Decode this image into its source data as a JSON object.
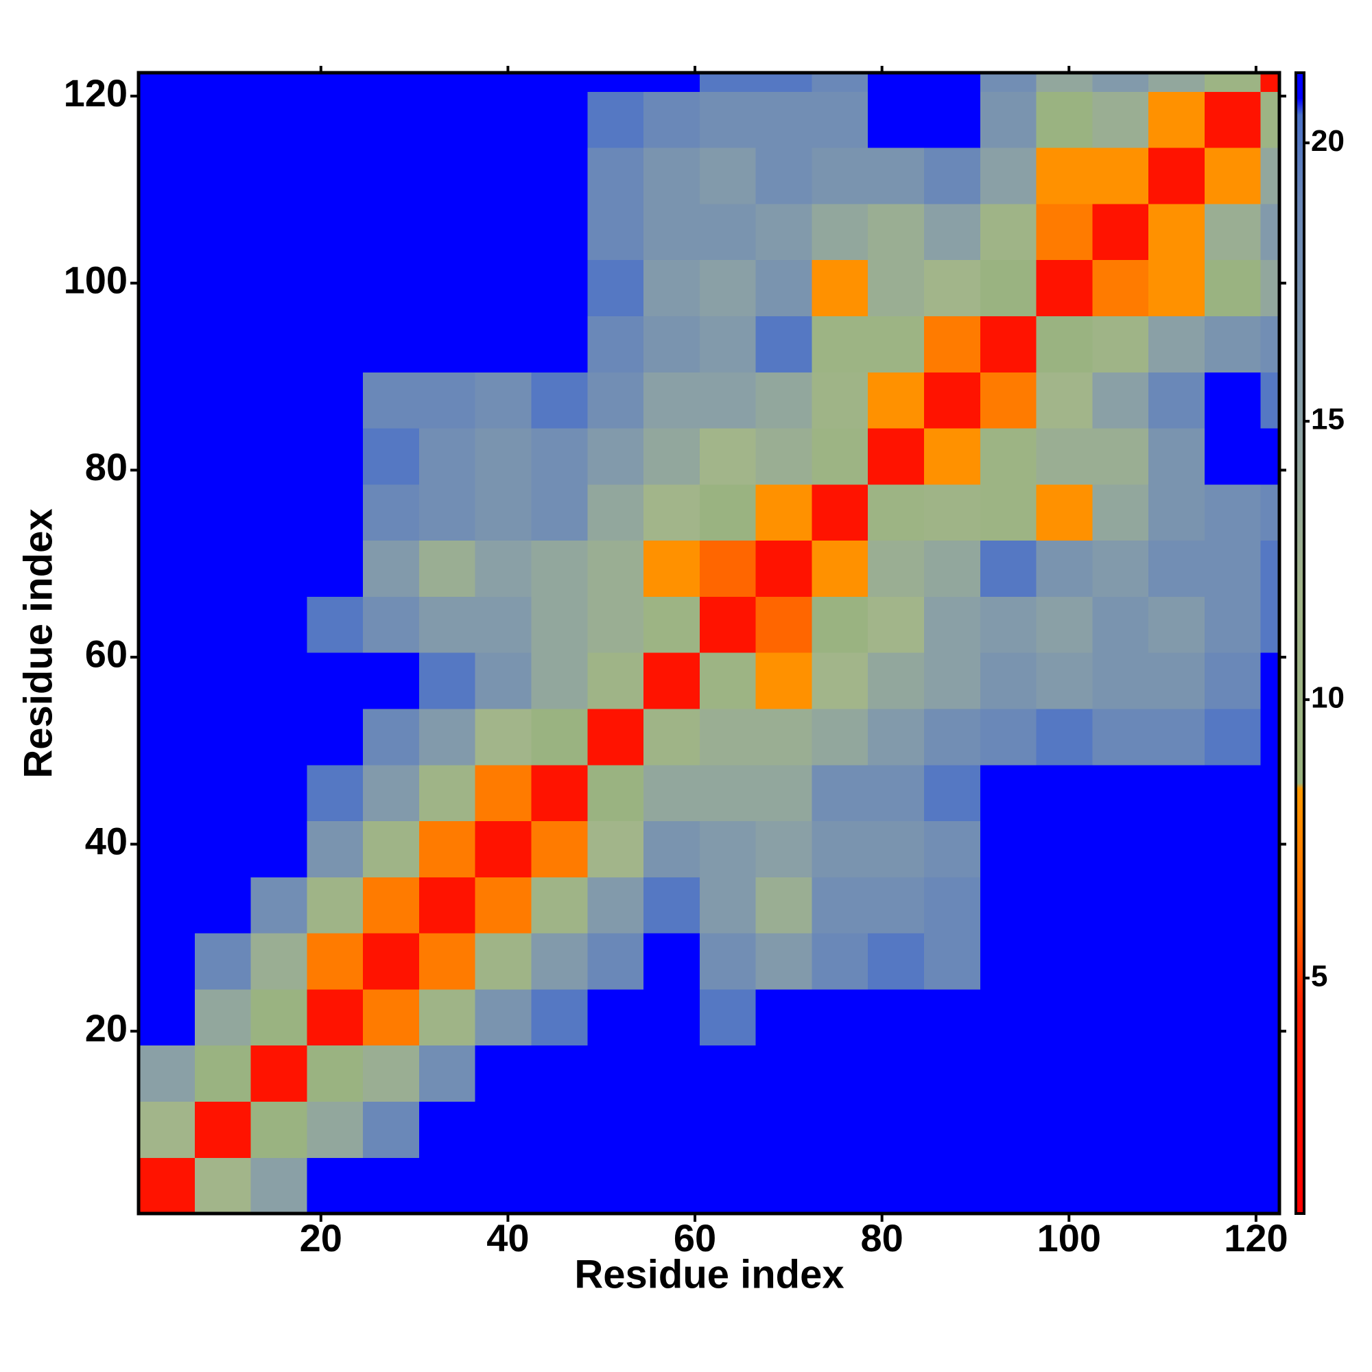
{
  "chart_data": {
    "type": "heatmap",
    "x_label": "Residue index",
    "y_label": "Residue index",
    "x_edges": [
      0.5,
      6.5,
      12.5,
      18.5,
      24.5,
      30.5,
      36.5,
      42.5,
      48.5,
      54.5,
      60.5,
      66.5,
      72.5,
      78.5,
      84.5,
      90.5,
      96.5,
      102.5,
      108.5,
      114.5,
      120.5,
      122.5
    ],
    "y_edges": [
      0.5,
      6.5,
      12.5,
      18.5,
      24.5,
      30.5,
      36.5,
      42.5,
      48.5,
      54.5,
      60.5,
      66.5,
      72.5,
      78.5,
      84.5,
      90.5,
      96.5,
      102.5,
      108.5,
      114.5,
      120.5,
      122.5
    ],
    "z": [
      [
        3,
        12,
        15,
        21,
        21,
        21,
        21,
        21,
        21,
        21,
        21,
        21,
        21,
        21,
        21,
        21,
        21,
        21,
        21,
        21,
        21
      ],
      [
        12,
        3,
        9,
        14,
        19,
        21,
        21,
        21,
        21,
        21,
        21,
        21,
        21,
        21,
        21,
        21,
        21,
        21,
        21,
        21,
        21
      ],
      [
        15,
        9,
        3,
        9,
        13,
        18,
        21,
        21,
        21,
        21,
        21,
        21,
        21,
        21,
        21,
        21,
        21,
        21,
        21,
        21,
        21
      ],
      [
        21,
        14,
        9,
        3,
        7,
        11,
        17,
        20,
        21,
        21,
        20,
        21,
        21,
        21,
        21,
        21,
        21,
        21,
        21,
        21,
        21
      ],
      [
        21,
        19,
        13,
        7,
        3,
        7,
        11,
        16,
        19,
        21,
        18,
        16,
        19,
        20,
        19,
        21,
        21,
        21,
        21,
        21,
        21
      ],
      [
        21,
        21,
        18,
        11,
        7,
        3,
        7,
        11,
        16,
        20,
        16,
        13,
        18,
        18,
        19,
        21,
        21,
        21,
        21,
        21,
        21
      ],
      [
        21,
        21,
        21,
        17,
        11,
        7,
        3,
        7,
        12,
        17,
        16,
        15,
        17,
        17,
        18,
        21,
        21,
        21,
        21,
        21,
        21
      ],
      [
        21,
        21,
        21,
        20,
        16,
        11,
        7,
        3,
        9,
        14,
        14,
        14,
        18,
        18,
        20,
        21,
        21,
        21,
        21,
        21,
        21
      ],
      [
        21,
        21,
        21,
        21,
        19,
        16,
        12,
        9,
        3,
        11,
        13,
        13,
        14,
        16,
        18,
        19,
        20,
        19,
        19,
        20,
        21
      ],
      [
        21,
        21,
        21,
        21,
        21,
        20,
        17,
        14,
        11,
        3,
        10,
        8,
        12,
        14,
        15,
        17,
        16,
        17,
        17,
        19,
        21
      ],
      [
        21,
        21,
        21,
        20,
        18,
        16,
        16,
        14,
        13,
        10,
        3,
        6,
        9,
        12,
        15,
        16,
        15,
        17,
        16,
        18,
        20
      ],
      [
        21,
        21,
        21,
        21,
        16,
        13,
        15,
        14,
        13,
        8,
        6,
        3,
        8,
        13,
        14,
        20,
        17,
        16,
        18,
        18,
        20
      ],
      [
        21,
        21,
        21,
        21,
        19,
        18,
        17,
        18,
        14,
        12,
        9,
        8,
        3,
        10,
        11,
        10,
        8,
        14,
        17,
        18,
        19
      ],
      [
        21,
        21,
        21,
        21,
        20,
        18,
        17,
        18,
        16,
        14,
        12,
        13,
        10,
        3,
        8,
        10,
        13,
        13,
        17,
        21,
        21
      ],
      [
        21,
        21,
        21,
        21,
        19,
        19,
        18,
        20,
        18,
        15,
        15,
        14,
        11,
        8,
        3,
        7,
        12,
        15,
        19,
        21,
        20
      ],
      [
        21,
        21,
        21,
        21,
        21,
        21,
        21,
        21,
        19,
        17,
        16,
        20,
        10,
        10,
        7,
        3,
        9,
        11,
        15,
        17,
        18
      ],
      [
        21,
        21,
        21,
        21,
        21,
        21,
        21,
        21,
        20,
        16,
        15,
        17,
        8,
        13,
        12,
        9,
        3,
        7,
        8,
        9,
        14
      ],
      [
        21,
        21,
        21,
        21,
        21,
        21,
        21,
        21,
        19,
        17,
        17,
        16,
        14,
        13,
        15,
        11,
        7,
        3,
        8,
        13,
        16
      ],
      [
        21,
        21,
        21,
        21,
        21,
        21,
        21,
        21,
        19,
        17,
        16,
        18,
        17,
        17,
        19,
        15,
        8,
        8,
        3,
        8,
        14
      ],
      [
        21,
        21,
        21,
        21,
        21,
        21,
        21,
        21,
        20,
        19,
        18,
        18,
        18,
        21,
        21,
        17,
        9,
        13,
        8,
        3,
        10
      ],
      [
        21,
        21,
        21,
        21,
        21,
        21,
        21,
        21,
        21,
        21,
        20,
        20,
        19,
        21,
        21,
        18,
        14,
        16,
        14,
        10,
        3
      ]
    ],
    "xlim": [
      0.5,
      122.5
    ],
    "ylim": [
      0.5,
      122.5
    ],
    "xticks": [
      20,
      40,
      60,
      80,
      100,
      120
    ],
    "yticks": [
      20,
      40,
      60,
      80,
      100,
      120
    ],
    "zlim": [
      0.77,
      21.26
    ],
    "colorbar_ticks": [
      5,
      10,
      15,
      20
    ],
    "colorscale": [
      [
        0.77,
        "#ff0000"
      ],
      [
        4.5,
        "#ff2000"
      ],
      [
        6,
        "#ff6600"
      ],
      [
        8.4,
        "#ff9900"
      ],
      [
        8.5,
        "#99b37f"
      ],
      [
        12,
        "#a2b58a"
      ],
      [
        15,
        "#8aa0a6"
      ],
      [
        19,
        "#6a88b8"
      ],
      [
        20.5,
        "#4a70c8"
      ],
      [
        20.8,
        "#0000ff"
      ],
      [
        21.26,
        "#0000ff"
      ]
    ]
  }
}
